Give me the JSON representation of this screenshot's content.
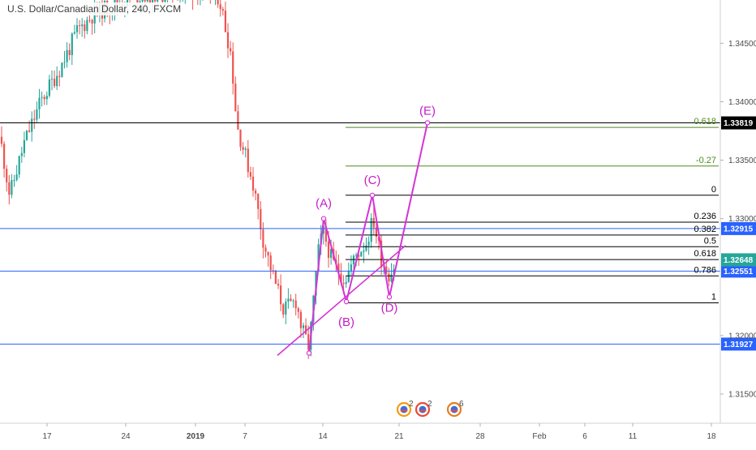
{
  "title": "U.S. Dollar/Canadian Dollar, 240, FXCM",
  "chart_data": {
    "type": "candlestick",
    "y_axis": {
      "ylim": [
        1.3125,
        1.3487
      ],
      "ticks": [
        {
          "value": 1.345,
          "label": "1.34500"
        },
        {
          "value": 1.34,
          "label": "1.34000"
        },
        {
          "value": 1.335,
          "label": "1.33500"
        },
        {
          "value": 1.33,
          "label": "1.33000"
        },
        {
          "value": 1.32,
          "label": "1.32000"
        },
        {
          "value": 1.315,
          "label": "1.31500"
        }
      ]
    },
    "x_axis": {
      "ticks": [
        {
          "label": "17",
          "bold": false
        },
        {
          "label": "24",
          "bold": false
        },
        {
          "label": "2019",
          "bold": true
        },
        {
          "label": "7",
          "bold": false
        },
        {
          "label": "14",
          "bold": false
        },
        {
          "label": "21",
          "bold": false
        },
        {
          "label": "28",
          "bold": false
        },
        {
          "label": "Feb",
          "bold": false
        },
        {
          "label": "6",
          "bold": false
        },
        {
          "label": "11",
          "bold": false
        },
        {
          "label": "18",
          "bold": false
        }
      ]
    },
    "horizontal_lines": [
      {
        "price": 1.33819,
        "label": "1.33819",
        "color": "#000000",
        "tag_color": "#000000"
      },
      {
        "price": 1.32915,
        "label": "1.32915",
        "color": "#2962ff",
        "tag_color": "#2962ff"
      },
      {
        "price": 1.32551,
        "label": "1.32551",
        "color": "#2962ff",
        "tag_color": "#2962ff"
      },
      {
        "price": 1.31927,
        "label": "1.31927",
        "color": "#2962ff",
        "tag_color": "#2962ff"
      }
    ],
    "current_price": {
      "price": 1.32648,
      "label": "1.32648",
      "color": "#26a69a"
    },
    "fib_levels": [
      {
        "level": "0.618",
        "price": 1.3378,
        "color": "#4e8a1e"
      },
      {
        "level": "-0.27",
        "price": 1.3345,
        "color": "#4e8a1e"
      },
      {
        "level": "0",
        "price": 1.332,
        "color": "#000000"
      },
      {
        "level": "0.236",
        "price": 1.3297,
        "color": "#000000"
      },
      {
        "level": "0.382",
        "price": 1.3286,
        "color": "#000000"
      },
      {
        "level": "0.5",
        "price": 1.3276,
        "color": "#000000"
      },
      {
        "level": "0.618",
        "price": 1.3265,
        "color": "#000000"
      },
      {
        "level": "0.786",
        "price": 1.3251,
        "color": "#000000"
      },
      {
        "level": "1",
        "price": 1.3228,
        "color": "#000000"
      }
    ],
    "waves": [
      {
        "label": "(A)",
        "price": 1.33
      },
      {
        "label": "(B)",
        "price": 1.3229
      },
      {
        "label": "(C)",
        "price": 1.332
      },
      {
        "label": "(D)",
        "price": 1.3233
      },
      {
        "label": "(E)",
        "price": 1.3382
      }
    ],
    "wave_start_price": 1.3185,
    "event_badges": [
      {
        "count": "2",
        "color": "#f39c12"
      },
      {
        "count": "2",
        "color": "#e74c3c"
      },
      {
        "count": "6",
        "color": "#e67e22"
      }
    ],
    "colors": {
      "up": "#26a69a",
      "down": "#ef5350",
      "wave": "#d633d6",
      "trendline": "#d633d6"
    }
  }
}
